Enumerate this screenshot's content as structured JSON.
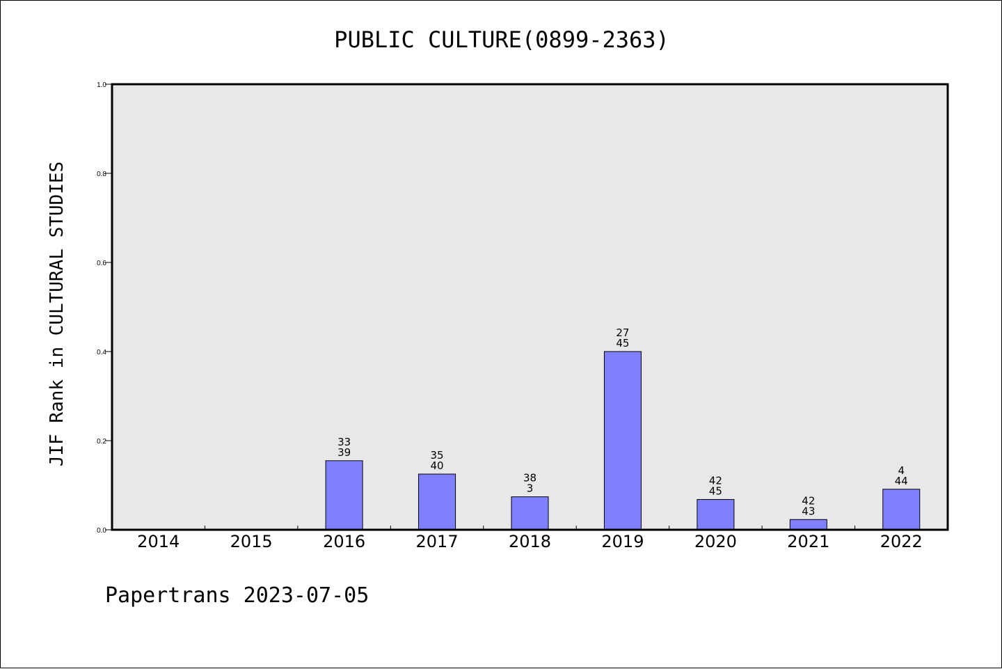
{
  "chart_data": {
    "type": "bar",
    "title": "PUBLIC CULTURE(0899-2363)",
    "ylabel": "JIF Rank in CULTURAL STUDIES",
    "xlabel": "",
    "ylim": [
      0,
      1.0
    ],
    "yticks": [
      "0.0",
      "0.2",
      "0.4",
      "0.6",
      "0.8",
      "1.0"
    ],
    "categories": [
      "2014",
      "2015",
      "2016",
      "2017",
      "2018",
      "2019",
      "2020",
      "2021",
      "2022"
    ],
    "values": [
      null,
      null,
      0.155,
      0.125,
      0.074,
      0.4,
      0.068,
      0.023,
      0.091
    ],
    "labels_top": [
      "",
      "",
      "33",
      "35",
      "38",
      "27",
      "42",
      "42",
      "4"
    ],
    "labels_bottom": [
      "",
      "",
      "39",
      "40",
      "3",
      "45",
      "45",
      "43",
      "44"
    ],
    "bar_color": "#8080ff",
    "plot_bg": "#e8e8e8",
    "grid": false
  },
  "footer": "Papertrans 2023-07-05"
}
